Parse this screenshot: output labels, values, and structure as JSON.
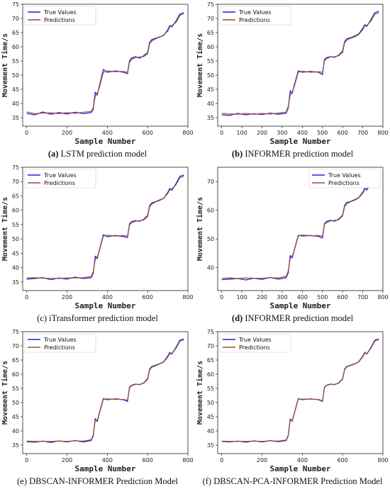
{
  "chart_data": [
    {
      "type": "line",
      "caption_letter": "(a)",
      "caption_text": " LSTM prediction model",
      "caption_bold_letter": true,
      "xlabel": "Sample Number",
      "ylabel": "Movement Time/s",
      "xlim": [
        -20,
        800
      ],
      "ylim": [
        32,
        75
      ],
      "xticks": [
        0,
        200,
        400,
        600,
        800
      ],
      "yticks": [
        35,
        40,
        45,
        50,
        55,
        60,
        65,
        70,
        75
      ],
      "legend_position": "top-left",
      "grid": false,
      "x": [
        0,
        40,
        80,
        120,
        160,
        200,
        240,
        280,
        320,
        330,
        340,
        350,
        360,
        380,
        400,
        440,
        480,
        500,
        510,
        520,
        540,
        560,
        580,
        600,
        610,
        620,
        640,
        660,
        680,
        700,
        710,
        720,
        740,
        760,
        780
      ],
      "series": [
        {
          "name": "True Values",
          "values": [
            36.5,
            36.0,
            37.0,
            36.2,
            36.8,
            36.3,
            36.9,
            36.4,
            36.8,
            38.0,
            44.0,
            43.0,
            46.0,
            52.0,
            51.0,
            51.5,
            51.0,
            50.5,
            55.0,
            56.0,
            56.5,
            56.0,
            56.8,
            58.0,
            61.5,
            62.5,
            63.0,
            63.5,
            64.0,
            66.0,
            67.5,
            67.0,
            69.0,
            71.5,
            72.0
          ]
        },
        {
          "name": "Predictions",
          "values": [
            37.0,
            36.4,
            36.6,
            36.7,
            36.4,
            36.8,
            36.5,
            36.9,
            37.2,
            38.5,
            42.5,
            43.5,
            45.5,
            51.0,
            51.5,
            51.2,
            51.3,
            51.0,
            54.5,
            55.5,
            56.2,
            56.4,
            56.5,
            57.5,
            61.0,
            62.0,
            62.8,
            63.4,
            64.2,
            65.5,
            67.0,
            67.5,
            68.5,
            71.0,
            71.8
          ]
        }
      ]
    },
    {
      "type": "line",
      "caption_letter": "(b)",
      "caption_text": " INFORMER prediction model",
      "caption_bold_letter": true,
      "xlabel": "Sample Number",
      "ylabel": "Movement Time/s",
      "xlim": [
        -20,
        800
      ],
      "ylim": [
        32,
        75
      ],
      "xticks": [
        0,
        100,
        200,
        300,
        400,
        500,
        600,
        700,
        800
      ],
      "yticks": [
        35,
        40,
        45,
        50,
        55,
        60,
        65,
        70,
        75
      ],
      "legend_position": "top-left",
      "grid": false,
      "x": [
        0,
        40,
        80,
        120,
        160,
        200,
        240,
        280,
        320,
        330,
        340,
        350,
        360,
        380,
        400,
        440,
        480,
        500,
        510,
        520,
        540,
        560,
        580,
        600,
        610,
        620,
        640,
        660,
        680,
        700,
        710,
        720,
        740,
        760,
        780
      ],
      "series": [
        {
          "name": "True Values",
          "values": [
            36.0,
            35.8,
            36.5,
            36.0,
            36.4,
            36.1,
            36.6,
            36.2,
            36.6,
            38.5,
            44.5,
            43.5,
            46.5,
            51.5,
            51.0,
            51.3,
            51.0,
            50.2,
            55.5,
            56.2,
            56.5,
            56.3,
            57.0,
            58.5,
            61.8,
            62.8,
            63.2,
            63.8,
            64.5,
            66.5,
            67.8,
            67.2,
            69.5,
            72.0,
            72.5
          ]
        },
        {
          "name": "Predictions",
          "values": [
            36.5,
            36.3,
            36.2,
            36.5,
            36.2,
            36.5,
            36.3,
            36.6,
            37.0,
            39.0,
            43.0,
            44.0,
            46.0,
            51.0,
            51.4,
            51.0,
            51.2,
            51.0,
            55.0,
            55.8,
            56.4,
            56.5,
            56.8,
            58.0,
            61.4,
            62.3,
            63.0,
            63.5,
            64.3,
            66.0,
            67.3,
            67.6,
            69.0,
            71.5,
            72.0
          ]
        }
      ]
    },
    {
      "type": "line",
      "caption_letter": "(c)",
      "caption_text": " iTransformer prediction model",
      "caption_bold_letter": false,
      "xlabel": "Sample Number",
      "ylabel": "Movement Time/s",
      "xlim": [
        -20,
        800
      ],
      "ylim": [
        32,
        75
      ],
      "xticks": [
        0,
        200,
        400,
        600,
        800
      ],
      "yticks": [
        35,
        40,
        45,
        50,
        55,
        60,
        65,
        70,
        75
      ],
      "legend_position": "top-left",
      "grid": false,
      "x": [
        0,
        40,
        80,
        120,
        160,
        200,
        240,
        280,
        320,
        330,
        340,
        350,
        360,
        380,
        400,
        440,
        480,
        500,
        510,
        520,
        540,
        560,
        580,
        600,
        610,
        620,
        640,
        660,
        680,
        700,
        710,
        720,
        740,
        760,
        780
      ],
      "series": [
        {
          "name": "True Values",
          "values": [
            36.0,
            36.2,
            36.5,
            35.8,
            36.4,
            36.0,
            36.7,
            36.2,
            36.5,
            38.0,
            44.0,
            43.2,
            46.0,
            51.5,
            50.8,
            51.2,
            50.8,
            50.5,
            55.2,
            56.0,
            56.4,
            56.2,
            56.8,
            58.2,
            61.6,
            62.6,
            63.0,
            63.6,
            64.2,
            66.2,
            67.6,
            67.0,
            69.2,
            71.8,
            72.3
          ]
        },
        {
          "name": "Predictions",
          "values": [
            36.4,
            36.5,
            36.3,
            36.3,
            36.2,
            36.4,
            36.4,
            36.5,
            36.9,
            38.6,
            42.8,
            43.8,
            45.8,
            51.0,
            51.3,
            51.0,
            51.2,
            51.0,
            54.8,
            55.6,
            56.2,
            56.4,
            56.6,
            57.8,
            61.2,
            62.1,
            62.9,
            63.4,
            64.2,
            65.8,
            67.1,
            67.5,
            68.8,
            71.3,
            71.9
          ]
        }
      ]
    },
    {
      "type": "line",
      "caption_letter": "(d)",
      "caption_text": " INFORMER prediction model",
      "caption_bold_letter": true,
      "xlabel": "Sample Number",
      "ylabel": "Movement Time/s",
      "xlim": [
        -20,
        800
      ],
      "ylim": [
        32,
        75
      ],
      "xticks": [
        0,
        100,
        200,
        300,
        400,
        500,
        600,
        700,
        800
      ],
      "yticks": [
        40,
        50,
        60,
        70
      ],
      "legend_position": "top-right",
      "grid": false,
      "x": [
        0,
        40,
        80,
        120,
        160,
        200,
        240,
        280,
        320,
        330,
        340,
        350,
        360,
        380,
        400,
        440,
        480,
        500,
        510,
        520,
        540,
        560,
        580,
        600,
        610,
        620,
        640,
        660,
        680,
        700,
        710,
        720,
        740,
        760,
        780
      ],
      "series": [
        {
          "name": "True Values",
          "values": [
            35.8,
            36.0,
            36.2,
            35.7,
            36.3,
            35.9,
            36.6,
            36.0,
            36.5,
            38.2,
            44.2,
            43.4,
            46.2,
            51.3,
            51.0,
            51.2,
            50.9,
            50.3,
            55.3,
            56.1,
            56.5,
            56.2,
            56.9,
            58.3,
            61.7,
            62.7,
            63.1,
            63.7,
            64.4,
            66.3,
            67.7,
            67.1,
            69.3,
            71.9,
            72.4
          ]
        },
        {
          "name": "Predictions",
          "values": [
            36.3,
            36.4,
            36.2,
            36.4,
            36.3,
            36.3,
            36.5,
            36.4,
            37.0,
            38.8,
            43.2,
            44.0,
            46.0,
            51.0,
            51.4,
            51.1,
            51.2,
            51.0,
            55.0,
            55.7,
            56.3,
            56.5,
            56.7,
            58.0,
            61.3,
            62.2,
            63.0,
            63.5,
            64.3,
            65.9,
            67.2,
            67.6,
            68.9,
            71.4,
            72.0
          ]
        }
      ]
    },
    {
      "type": "line",
      "caption_letter": "(e)",
      "caption_text": " DBSCAN-INFORMER Prediction Model",
      "caption_bold_letter": false,
      "xlabel": "Sample Number",
      "ylabel": "Movement Time/s",
      "xlim": [
        -20,
        800
      ],
      "ylim": [
        32,
        75
      ],
      "xticks": [
        0,
        200,
        400,
        600,
        800
      ],
      "yticks": [
        35,
        40,
        45,
        50,
        55,
        60,
        65,
        70,
        75
      ],
      "legend_position": "top-left",
      "grid": false,
      "x": [
        0,
        40,
        80,
        120,
        160,
        200,
        240,
        280,
        320,
        330,
        340,
        350,
        360,
        380,
        400,
        440,
        480,
        500,
        510,
        520,
        540,
        560,
        580,
        600,
        610,
        620,
        640,
        660,
        680,
        700,
        710,
        720,
        740,
        760,
        780
      ],
      "series": [
        {
          "name": "True Values",
          "values": [
            36.2,
            36.0,
            36.4,
            35.9,
            36.5,
            36.1,
            36.6,
            36.1,
            36.6,
            38.3,
            44.3,
            43.3,
            46.3,
            51.4,
            51.0,
            51.3,
            51.0,
            50.4,
            55.4,
            56.1,
            56.5,
            56.3,
            56.9,
            58.4,
            61.8,
            62.7,
            63.2,
            63.7,
            64.4,
            66.4,
            67.7,
            67.1,
            69.4,
            72.0,
            72.4
          ]
        },
        {
          "name": "Predictions",
          "values": [
            36.4,
            36.3,
            36.3,
            36.3,
            36.4,
            36.3,
            36.5,
            36.4,
            36.9,
            38.6,
            43.6,
            43.8,
            46.0,
            51.1,
            51.3,
            51.1,
            51.1,
            50.8,
            55.1,
            55.9,
            56.4,
            56.4,
            56.8,
            58.1,
            61.5,
            62.4,
            63.0,
            63.6,
            64.3,
            66.0,
            67.3,
            67.4,
            69.0,
            71.6,
            72.1
          ]
        }
      ]
    },
    {
      "type": "line",
      "caption_letter": "(f)",
      "caption_text": " DBSCAN-PCA-INFORMER Prediction Model",
      "caption_bold_letter": false,
      "xlabel": "Sample Number",
      "ylabel": "Movement Time/s",
      "xlim": [
        -20,
        800
      ],
      "ylim": [
        32,
        75
      ],
      "xticks": [
        0,
        200,
        400,
        600,
        800
      ],
      "yticks": [
        35,
        40,
        45,
        50,
        55,
        60,
        65,
        70,
        75
      ],
      "legend_position": "top-left",
      "grid": false,
      "x": [
        0,
        40,
        80,
        120,
        160,
        200,
        240,
        280,
        320,
        330,
        340,
        350,
        360,
        380,
        400,
        440,
        480,
        500,
        510,
        520,
        540,
        560,
        580,
        600,
        610,
        620,
        640,
        660,
        680,
        700,
        710,
        720,
        740,
        760,
        780
      ],
      "series": [
        {
          "name": "True Values",
          "values": [
            36.3,
            36.1,
            36.4,
            36.0,
            36.5,
            36.1,
            36.6,
            36.2,
            36.6,
            38.3,
            44.2,
            43.4,
            46.2,
            51.4,
            51.0,
            51.3,
            51.0,
            50.4,
            55.4,
            56.1,
            56.5,
            56.3,
            56.9,
            58.4,
            61.8,
            62.7,
            63.2,
            63.7,
            64.4,
            66.4,
            67.7,
            67.1,
            69.4,
            72.0,
            72.4
          ]
        },
        {
          "name": "Predictions",
          "values": [
            36.4,
            36.3,
            36.3,
            36.3,
            36.4,
            36.3,
            36.5,
            36.4,
            36.8,
            38.5,
            43.8,
            43.7,
            46.1,
            51.2,
            51.2,
            51.2,
            51.1,
            50.6,
            55.2,
            56.0,
            56.4,
            56.4,
            56.8,
            58.2,
            61.6,
            62.5,
            63.1,
            63.6,
            64.3,
            66.1,
            67.4,
            67.3,
            69.1,
            71.7,
            72.2
          ]
        }
      ]
    }
  ],
  "colors": {
    "true_values": "#2020e0",
    "predictions": "#a0522d",
    "axis": "#222222"
  }
}
